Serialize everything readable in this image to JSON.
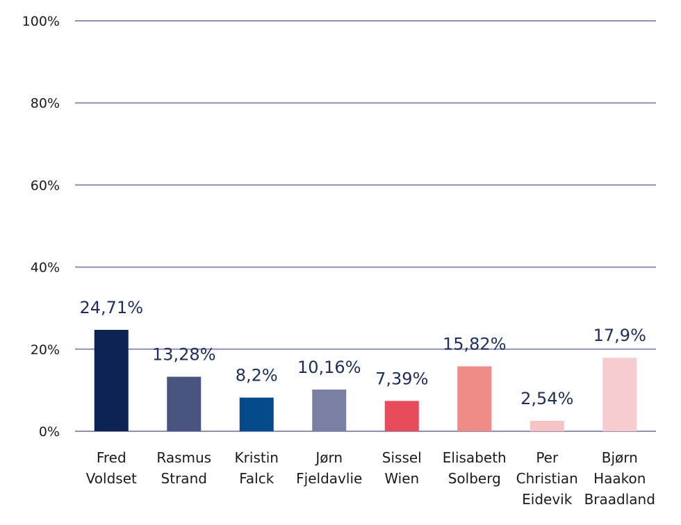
{
  "chart_data": {
    "type": "bar",
    "categories": [
      [
        "Fred",
        "Voldset"
      ],
      [
        "Rasmus",
        "Strand"
      ],
      [
        "Kristin",
        "Falck"
      ],
      [
        "Jørn",
        "Fjeldavlie"
      ],
      [
        "Sissel",
        "Wien"
      ],
      [
        "Elisabeth",
        "Solberg"
      ],
      [
        "Per",
        "Christian",
        "Eidevik"
      ],
      [
        "Bjørn",
        "Haakon",
        "Braadland"
      ]
    ],
    "values": [
      24.71,
      13.28,
      8.2,
      10.16,
      7.39,
      15.82,
      2.54,
      17.9
    ],
    "data_labels": [
      "24,71%",
      "13,28%",
      "8,2%",
      "10,16%",
      "7,39%",
      "15,82%",
      "2,54%",
      "17,9%"
    ],
    "colors": [
      "#0d2352",
      "#4a5480",
      "#044a8a",
      "#7a80a4",
      "#e74c5a",
      "#f08c88",
      "#f6c2c4",
      "#f6cccf"
    ],
    "yticks": [
      0,
      20,
      40,
      60,
      80,
      100
    ],
    "ytick_labels": [
      "0%",
      "20%",
      "40%",
      "60%",
      "80%",
      "100%"
    ],
    "ylim": [
      0,
      100
    ],
    "grid": true,
    "title": "",
    "xlabel": "",
    "ylabel": ""
  }
}
